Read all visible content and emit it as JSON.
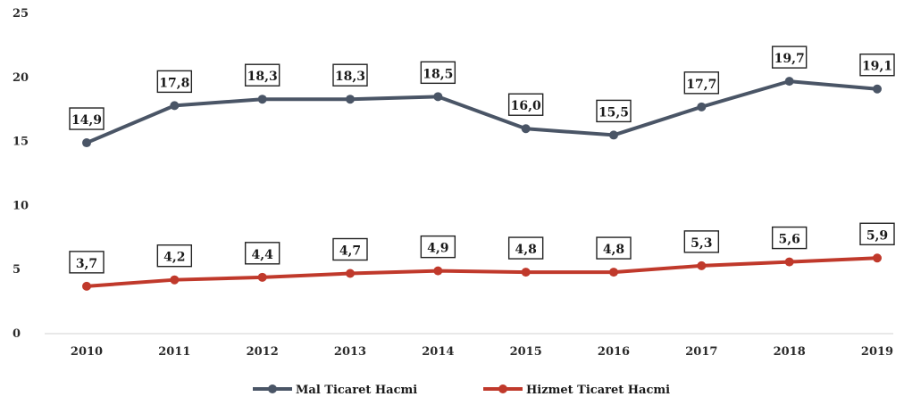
{
  "chart_data": {
    "type": "line",
    "categories": [
      "2010",
      "2011",
      "2012",
      "2013",
      "2014",
      "2015",
      "2016",
      "2017",
      "2018",
      "2019"
    ],
    "ylim": [
      0,
      25
    ],
    "yticks": [
      "0",
      "5",
      "10",
      "15",
      "20",
      "25"
    ],
    "grid": false,
    "legend_position": "bottom",
    "series": [
      {
        "name": "Mal Ticaret Hacmi",
        "color": "#4a5566",
        "values": [
          14.9,
          17.8,
          18.3,
          18.3,
          18.5,
          16.0,
          15.5,
          17.7,
          19.7,
          19.1
        ],
        "labels": [
          "14,9",
          "17,8",
          "18,3",
          "18,3",
          "18,5",
          "16,0",
          "15,5",
          "17,7",
          "19,7",
          "19,1"
        ]
      },
      {
        "name": "Hizmet Ticaret Hacmi",
        "color": "#c0392b",
        "values": [
          3.7,
          4.2,
          4.4,
          4.7,
          4.9,
          4.8,
          4.8,
          5.3,
          5.6,
          5.9
        ],
        "labels": [
          "3,7",
          "4,2",
          "4,4",
          "4,7",
          "4,9",
          "4,8",
          "4,8",
          "5,3",
          "5,6",
          "5,9"
        ]
      }
    ]
  }
}
